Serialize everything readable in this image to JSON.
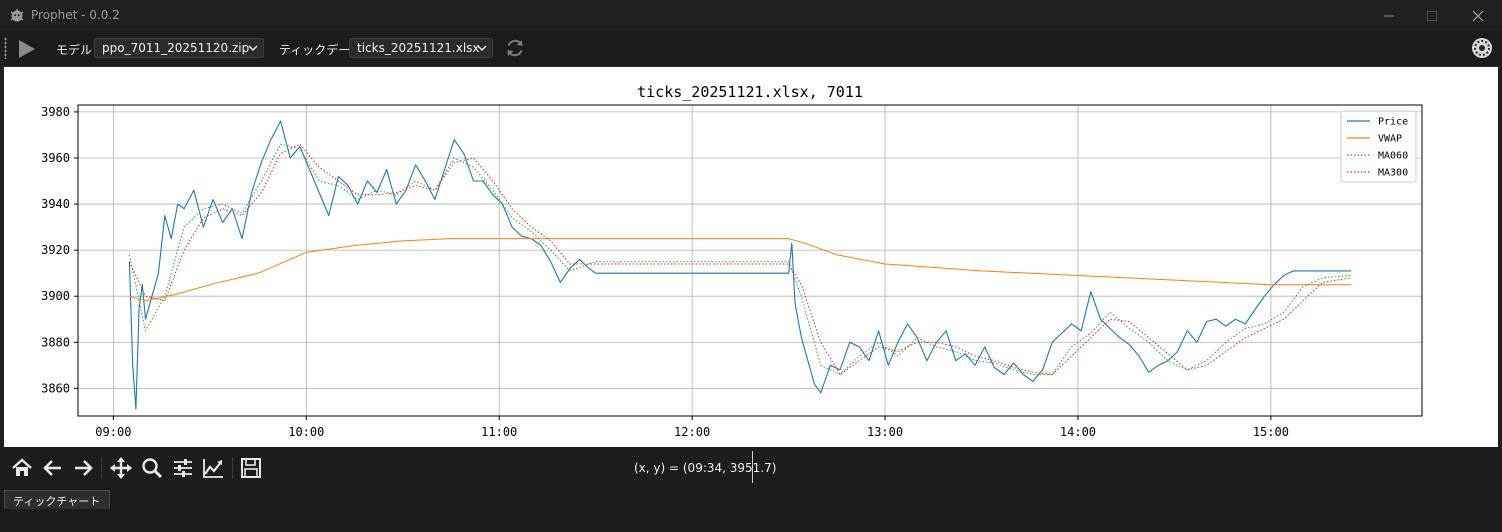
{
  "window": {
    "title": "Prophet - 0.0.2"
  },
  "toolbar": {
    "model_label": "モデル",
    "model_value": "ppo_7011_20251120.zip",
    "tick_label": "ティックデータ",
    "tick_value": "ticks_20251121.xlsx"
  },
  "icons": {
    "app": "app-icon",
    "play": "play-icon",
    "refresh": "refresh-icon",
    "settings": "settings-icon",
    "home": "home-icon",
    "back": "arrow-left-icon",
    "forward": "arrow-right-icon",
    "pan": "move-icon",
    "zoom": "magnifier-icon",
    "subplots": "sliders-icon",
    "axes": "chart-line-icon",
    "save": "floppy-icon"
  },
  "colors": {
    "price": "#1f77b4",
    "vwap": "#ff7f0e",
    "ma060": "#2ca02c",
    "ma300": "#d62728"
  },
  "navbar": {
    "coords": "(x, y) = (09:34, 3951.7)"
  },
  "tabs": [
    "ティックチャート"
  ],
  "chart_data": {
    "type": "line",
    "title": "ticks_20251121.xlsx, 7011",
    "xlabel": "",
    "ylabel": "",
    "x_ticks": [
      "09:00",
      "10:00",
      "11:00",
      "12:00",
      "13:00",
      "14:00",
      "15:00"
    ],
    "y_ticks": [
      3860,
      3880,
      3900,
      3920,
      3940,
      3960,
      3980
    ],
    "xlim": [
      "08:49",
      "15:47"
    ],
    "ylim": [
      3848,
      3983
    ],
    "grid": true,
    "legend_position": "top-right",
    "series": [
      {
        "name": "Price",
        "style": "solid",
        "x": [
          "09:05",
          "09:06",
          "09:07",
          "09:08",
          "09:09",
          "09:10",
          "09:12",
          "09:14",
          "09:16",
          "09:18",
          "09:20",
          "09:22",
          "09:25",
          "09:28",
          "09:31",
          "09:34",
          "09:37",
          "09:40",
          "09:43",
          "09:46",
          "09:49",
          "09:52",
          "09:55",
          "09:58",
          "10:01",
          "10:04",
          "10:07",
          "10:10",
          "10:13",
          "10:16",
          "10:19",
          "10:22",
          "10:25",
          "10:28",
          "10:31",
          "10:34",
          "10:37",
          "10:40",
          "10:43",
          "10:46",
          "10:49",
          "10:52",
          "10:55",
          "10:58",
          "11:01",
          "11:04",
          "11:07",
          "11:10",
          "11:13",
          "11:16",
          "11:19",
          "11:22",
          "11:25",
          "11:28",
          "11:30",
          "12:30",
          "12:31",
          "12:32",
          "12:34",
          "12:36",
          "12:38",
          "12:40",
          "12:43",
          "12:46",
          "12:49",
          "12:52",
          "12:55",
          "12:58",
          "13:01",
          "13:04",
          "13:07",
          "13:10",
          "13:13",
          "13:16",
          "13:19",
          "13:22",
          "13:25",
          "13:28",
          "13:31",
          "13:34",
          "13:37",
          "13:40",
          "13:43",
          "13:46",
          "13:49",
          "13:52",
          "13:55",
          "13:58",
          "14:01",
          "14:04",
          "14:07",
          "14:10",
          "14:13",
          "14:16",
          "14:19",
          "14:22",
          "14:25",
          "14:28",
          "14:31",
          "14:34",
          "14:37",
          "14:40",
          "14:43",
          "14:46",
          "14:49",
          "14:52",
          "14:55",
          "14:58",
          "15:01",
          "15:04",
          "15:07",
          "15:10",
          "15:13",
          "15:16",
          "15:19",
          "15:22",
          "15:25"
        ],
        "y": [
          3915,
          3870,
          3851,
          3895,
          3905,
          3890,
          3900,
          3910,
          3935,
          3925,
          3940,
          3938,
          3946,
          3930,
          3942,
          3932,
          3938,
          3925,
          3945,
          3958,
          3968,
          3976,
          3960,
          3965,
          3955,
          3945,
          3935,
          3952,
          3948,
          3940,
          3950,
          3945,
          3955,
          3940,
          3946,
          3957,
          3950,
          3942,
          3955,
          3968,
          3962,
          3950,
          3950,
          3944,
          3940,
          3930,
          3926,
          3925,
          3922,
          3915,
          3906,
          3912,
          3916,
          3912,
          3910,
          3910,
          3923,
          3897,
          3882,
          3872,
          3862,
          3858,
          3870,
          3868,
          3880,
          3878,
          3872,
          3885,
          3870,
          3880,
          3888,
          3882,
          3872,
          3880,
          3885,
          3872,
          3875,
          3870,
          3878,
          3869,
          3866,
          3871,
          3866,
          3863,
          3868,
          3880,
          3884,
          3888,
          3885,
          3902,
          3890,
          3886,
          3882,
          3879,
          3874,
          3867,
          3870,
          3872,
          3876,
          3885,
          3880,
          3889,
          3890,
          3887,
          3890,
          3888,
          3894,
          3900,
          3905,
          3909,
          3911,
          3911,
          3911,
          3911,
          3911,
          3911,
          3911
        ]
      },
      {
        "name": "VWAP",
        "style": "solid",
        "x": [
          "09:05",
          "09:10",
          "09:20",
          "09:30",
          "09:45",
          "10:00",
          "10:15",
          "10:30",
          "10:45",
          "11:00",
          "11:30",
          "12:30",
          "12:35",
          "12:45",
          "13:00",
          "13:30",
          "14:00",
          "14:30",
          "15:00",
          "15:25"
        ],
        "y": [
          3900,
          3898,
          3901,
          3905,
          3910,
          3919,
          3922,
          3924,
          3925,
          3925,
          3925,
          3925,
          3923,
          3918,
          3914,
          3911,
          3909,
          3907,
          3905,
          3905
        ]
      },
      {
        "name": "MA060",
        "style": "dotted",
        "x": [
          "09:05",
          "09:10",
          "09:16",
          "09:22",
          "09:28",
          "09:34",
          "09:40",
          "09:46",
          "09:52",
          "09:58",
          "10:04",
          "10:10",
          "10:16",
          "10:22",
          "10:28",
          "10:34",
          "10:40",
          "10:46",
          "10:52",
          "10:58",
          "11:04",
          "11:10",
          "11:16",
          "11:22",
          "11:30",
          "12:30",
          "12:34",
          "12:40",
          "12:46",
          "12:52",
          "12:58",
          "13:04",
          "13:10",
          "13:16",
          "13:22",
          "13:28",
          "13:34",
          "13:40",
          "13:46",
          "13:52",
          "13:58",
          "14:04",
          "14:10",
          "14:16",
          "14:22",
          "14:28",
          "14:34",
          "14:40",
          "14:46",
          "14:52",
          "14:58",
          "15:04",
          "15:10",
          "15:16",
          "15:25"
        ],
        "y": [
          3918,
          3885,
          3900,
          3930,
          3938,
          3940,
          3936,
          3950,
          3966,
          3964,
          3950,
          3948,
          3942,
          3946,
          3944,
          3950,
          3946,
          3960,
          3956,
          3946,
          3934,
          3928,
          3920,
          3911,
          3915,
          3915,
          3900,
          3870,
          3866,
          3874,
          3880,
          3874,
          3882,
          3878,
          3876,
          3872,
          3871,
          3868,
          3866,
          3866,
          3878,
          3884,
          3893,
          3886,
          3880,
          3872,
          3868,
          3872,
          3880,
          3886,
          3888,
          3893,
          3904,
          3908,
          3909
        ]
      },
      {
        "name": "MA300",
        "style": "dotted",
        "x": [
          "09:05",
          "09:10",
          "09:16",
          "09:22",
          "09:28",
          "09:34",
          "09:40",
          "09:46",
          "09:52",
          "09:58",
          "10:04",
          "10:10",
          "10:16",
          "10:22",
          "10:28",
          "10:34",
          "10:40",
          "10:46",
          "10:52",
          "10:58",
          "11:04",
          "11:10",
          "11:16",
          "11:22",
          "11:30",
          "12:30",
          "12:34",
          "12:40",
          "12:46",
          "12:52",
          "12:58",
          "13:04",
          "13:10",
          "13:16",
          "13:22",
          "13:28",
          "13:34",
          "13:40",
          "13:46",
          "13:52",
          "13:58",
          "14:04",
          "14:10",
          "14:16",
          "14:22",
          "14:28",
          "14:34",
          "14:40",
          "14:46",
          "14:52",
          "14:58",
          "15:04",
          "15:10",
          "15:16",
          "15:25"
        ],
        "y": [
          3915,
          3900,
          3898,
          3920,
          3934,
          3938,
          3935,
          3945,
          3962,
          3966,
          3956,
          3950,
          3944,
          3944,
          3945,
          3948,
          3946,
          3958,
          3960,
          3950,
          3938,
          3930,
          3924,
          3914,
          3914,
          3914,
          3905,
          3880,
          3866,
          3872,
          3878,
          3876,
          3880,
          3880,
          3878,
          3874,
          3872,
          3869,
          3867,
          3866,
          3874,
          3882,
          3890,
          3889,
          3882,
          3875,
          3868,
          3870,
          3876,
          3882,
          3886,
          3890,
          3898,
          3906,
          3908
        ]
      }
    ]
  }
}
